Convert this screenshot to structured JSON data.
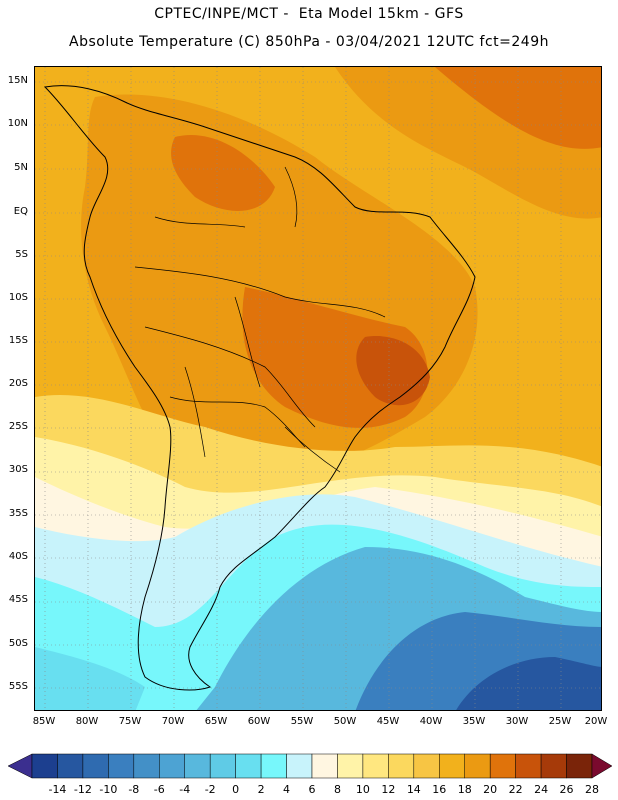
{
  "header": {
    "line1": "CPTEC/INPE/MCT -  Eta Model 15km - GFS",
    "line2": "Absolute Temperature (C) 850hPa - 03/04/2021 12UTC fct=249h"
  },
  "map": {
    "lat_labels": [
      "15N",
      "10N",
      "5N",
      "EQ",
      "5S",
      "10S",
      "15S",
      "20S",
      "25S",
      "30S",
      "35S",
      "40S",
      "45S",
      "50S",
      "55S"
    ],
    "lon_labels": [
      "85W",
      "80W",
      "75W",
      "70W",
      "65W",
      "60W",
      "55W",
      "50W",
      "45W",
      "40W",
      "35W",
      "30W",
      "25W",
      "20W"
    ]
  },
  "colorbar": {
    "labels": [
      "-14",
      "-12",
      "-10",
      "-8",
      "-6",
      "-4",
      "-2",
      "0",
      "2",
      "4",
      "6",
      "8",
      "10",
      "12",
      "14",
      "16",
      "18",
      "20",
      "22",
      "24",
      "26",
      "28"
    ],
    "colors": [
      "#1c3f8f",
      "#2657a0",
      "#2f6bb0",
      "#3a7fbf",
      "#4390c7",
      "#4da3d3",
      "#58b8dd",
      "#5fcbe6",
      "#68dff0",
      "#77f7fb",
      "#c8f3fb",
      "#fff6e1",
      "#fff3a8",
      "#ffe780",
      "#fbd85e",
      "#f7c544",
      "#f2b11c",
      "#eb9a12",
      "#e0730b",
      "#c8530a",
      "#a63a09",
      "#7a2409"
    ],
    "low_arrow": "#3b2f8f",
    "high_arrow": "#7a0a2e"
  }
}
